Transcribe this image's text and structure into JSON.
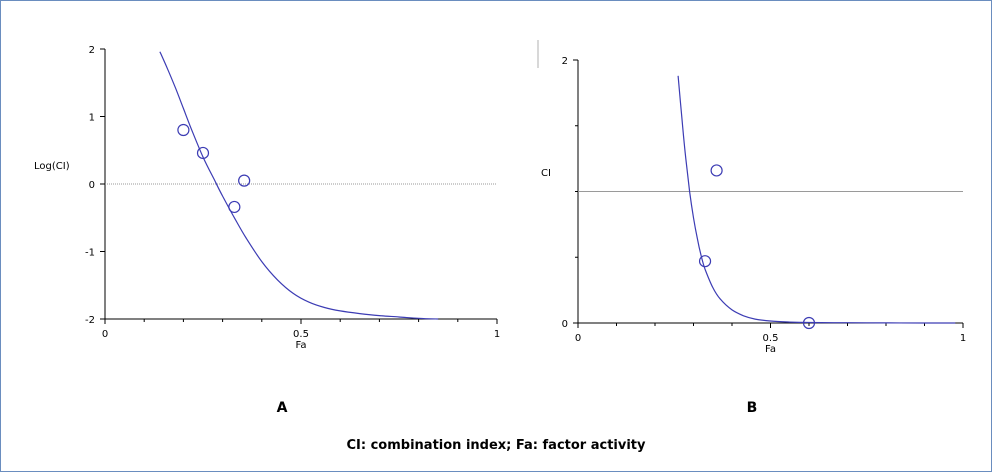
{
  "caption": "CI: combination index; Fa: factor activity",
  "colors": {
    "curve": "#3c3cb4",
    "point": "#3c3cb4",
    "reference_line": "#9a9a9a",
    "axis": "#000000"
  },
  "chart_data": [
    {
      "type": "scatter",
      "panel_label": "A",
      "xlabel": "Fa",
      "ylabel": "Log(CI)",
      "xlim": [
        0,
        1
      ],
      "ylim": [
        -2,
        2
      ],
      "x_ticks": [
        0,
        0.5,
        1
      ],
      "x_tick_labels": [
        "0",
        "0.5",
        "1"
      ],
      "y_ticks": [
        -2,
        -1,
        0,
        1,
        2
      ],
      "y_tick_labels": [
        "-2",
        "-1",
        "0",
        "1",
        "2"
      ],
      "reference_line": {
        "y": 0,
        "style": "dotted"
      },
      "points": [
        {
          "x": 0.2,
          "y": 0.8
        },
        {
          "x": 0.25,
          "y": 0.46
        },
        {
          "x": 0.355,
          "y": 0.05
        },
        {
          "x": 0.33,
          "y": -0.34
        }
      ],
      "fit_curve": {
        "x": [
          0.14,
          0.16,
          0.18,
          0.2,
          0.22,
          0.25,
          0.28,
          0.3,
          0.33,
          0.36,
          0.4,
          0.44,
          0.48,
          0.52,
          0.56,
          0.6,
          0.65,
          0.7,
          0.75,
          0.8,
          0.85
        ],
        "y": [
          1.96,
          1.7,
          1.42,
          1.12,
          0.82,
          0.4,
          0.05,
          -0.18,
          -0.5,
          -0.8,
          -1.15,
          -1.42,
          -1.62,
          -1.75,
          -1.83,
          -1.88,
          -1.92,
          -1.95,
          -1.97,
          -1.99,
          -2.0
        ]
      }
    },
    {
      "type": "scatter",
      "panel_label": "B",
      "xlabel": "Fa",
      "ylabel": "CI",
      "xlim": [
        0,
        1
      ],
      "ylim": [
        0,
        2
      ],
      "x_ticks": [
        0,
        0.5,
        1
      ],
      "x_tick_labels": [
        "0",
        "0.5",
        "1"
      ],
      "y_ticks": [
        0,
        2
      ],
      "y_tick_labels": [
        "0",
        "2"
      ],
      "y_minor_ticks": [
        0.5,
        1,
        1.5
      ],
      "reference_line": {
        "y": 1,
        "style": "solid"
      },
      "points": [
        {
          "x": 0.36,
          "y": 1.16
        },
        {
          "x": 0.33,
          "y": 0.47
        },
        {
          "x": 0.6,
          "y": 0.0
        }
      ],
      "fit_curve": {
        "x": [
          0.26,
          0.27,
          0.28,
          0.29,
          0.3,
          0.31,
          0.32,
          0.33,
          0.35,
          0.37,
          0.4,
          0.43,
          0.46,
          0.5,
          0.55,
          0.6,
          0.7,
          0.8,
          0.9,
          0.98
        ],
        "y": [
          1.88,
          1.55,
          1.25,
          1.0,
          0.8,
          0.64,
          0.51,
          0.41,
          0.27,
          0.18,
          0.1,
          0.055,
          0.03,
          0.015,
          0.007,
          0.004,
          0.002,
          0.001,
          0.0,
          0.0
        ]
      }
    }
  ]
}
